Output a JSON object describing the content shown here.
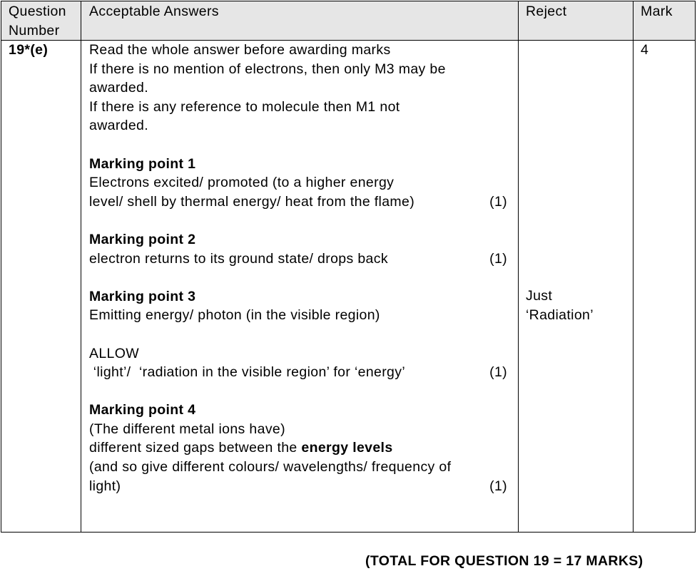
{
  "header": {
    "question_number": [
      "Question",
      "Number"
    ],
    "acceptable_answers": "Acceptable Answers",
    "reject": "Reject",
    "mark": "Mark"
  },
  "row": {
    "question_number": "19*(e)",
    "lines": [
      {
        "segments": [
          {
            "t": "Read the whole answer before awarding marks"
          }
        ]
      },
      {
        "segments": [
          {
            "t": "If there is no mention of electrons, then only M3 may be"
          }
        ]
      },
      {
        "segments": [
          {
            "t": "awarded."
          }
        ]
      },
      {
        "segments": [
          {
            "t": "If there is any reference to molecule then M1 not"
          }
        ]
      },
      {
        "segments": [
          {
            "t": "awarded."
          }
        ]
      },
      {
        "segments": []
      },
      {
        "segments": [
          {
            "t": "Marking point 1",
            "b": true
          }
        ]
      },
      {
        "segments": [
          {
            "t": "Electrons excited/ promoted (to a higher energy"
          }
        ]
      },
      {
        "segments": [
          {
            "t": "level/ shell by thermal energy/ heat from the flame)"
          }
        ],
        "mark": "(1)"
      },
      {
        "segments": []
      },
      {
        "segments": [
          {
            "t": "Marking point 2",
            "b": true
          }
        ]
      },
      {
        "segments": [
          {
            "t": "electron returns to its ground state/ drops back"
          }
        ],
        "mark": "(1)"
      },
      {
        "segments": []
      },
      {
        "segments": [
          {
            "t": "Marking point 3",
            "b": true
          }
        ]
      },
      {
        "segments": [
          {
            "t": "Emitting energy/ photon (in the visible region)"
          }
        ]
      },
      {
        "segments": []
      },
      {
        "segments": [
          {
            "t": "ALLOW"
          }
        ]
      },
      {
        "segments": [
          {
            "t": " ‘light’/  ‘radiation in the visible region’ for ‘energy’"
          }
        ],
        "mark": "(1)"
      },
      {
        "segments": []
      },
      {
        "segments": [
          {
            "t": "Marking point 4",
            "b": true
          }
        ]
      },
      {
        "segments": [
          {
            "t": "(The different metal ions have)"
          }
        ]
      },
      {
        "segments": [
          {
            "t": "different sized gaps between the "
          },
          {
            "t": "energy levels",
            "b": true
          }
        ]
      },
      {
        "segments": [
          {
            "t": "(and so give different colours/ wavelengths/ frequency of"
          }
        ]
      },
      {
        "segments": [
          {
            "t": "light)"
          }
        ],
        "mark": "(1)"
      }
    ],
    "reject": [
      "Just",
      "‘Radiation’"
    ],
    "mark": "4"
  },
  "total": "(TOTAL FOR QUESTION 19 = 17 MARKS)"
}
